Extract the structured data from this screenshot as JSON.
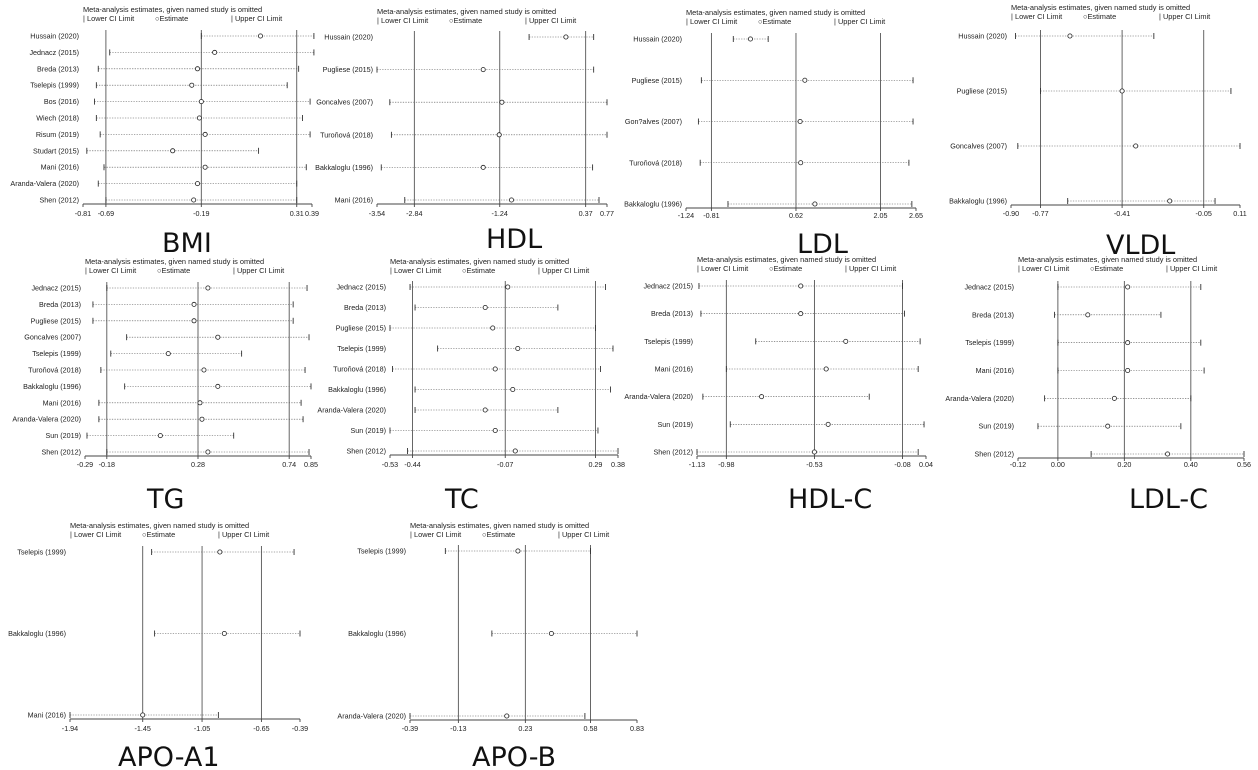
{
  "header": {
    "caption": "Meta-analysis estimates, given named study is omitted",
    "legend_lower": "Lower CI Limit",
    "legend_estimate": "Estimate",
    "legend_upper": "Upper CI Limit"
  },
  "chart_data": [
    {
      "type": "forest",
      "title": "BMI",
      "xlim": [
        -0.81,
        0.39
      ],
      "ticks": [
        "-0.81",
        "-0.69",
        "-0.19",
        "0.31",
        "0.39"
      ],
      "tick_values": [
        -0.81,
        -0.69,
        -0.19,
        0.31,
        0.39
      ],
      "reference_lines": [
        -0.69,
        -0.19,
        0.31
      ],
      "studies": [
        {
          "name": "Hussain (2020)",
          "lower": -0.19,
          "estimate": 0.12,
          "upper": 0.4
        },
        {
          "name": "Jednacz (2015)",
          "lower": -0.67,
          "estimate": -0.12,
          "upper": 0.4
        },
        {
          "name": "Breda (2013)",
          "lower": -0.73,
          "estimate": -0.21,
          "upper": 0.32
        },
        {
          "name": "Tselepis (1999)",
          "lower": -0.74,
          "estimate": -0.24,
          "upper": 0.26
        },
        {
          "name": "Bos (2016)",
          "lower": -0.75,
          "estimate": -0.19,
          "upper": 0.38
        },
        {
          "name": "Wiech (2018)",
          "lower": -0.74,
          "estimate": -0.2,
          "upper": 0.34
        },
        {
          "name": "Risum (2019)",
          "lower": -0.72,
          "estimate": -0.17,
          "upper": 0.38
        },
        {
          "name": "Studart (2015)",
          "lower": -0.79,
          "estimate": -0.34,
          "upper": 0.11
        },
        {
          "name": "Mani (2016)",
          "lower": -0.7,
          "estimate": -0.17,
          "upper": 0.36
        },
        {
          "name": "Aranda-Valera (2020)",
          "lower": -0.73,
          "estimate": -0.21,
          "upper": 0.31
        },
        {
          "name": "Shen (2012)",
          "lower": -0.69,
          "estimate": -0.23,
          "upper": 0.31
        }
      ]
    },
    {
      "type": "forest",
      "title": "HDL",
      "xlim": [
        -3.54,
        0.77
      ],
      "ticks": [
        "-3.54",
        "-2.84",
        "-1.24",
        "0.37",
        "0.77"
      ],
      "tick_values": [
        -3.54,
        -2.84,
        -1.24,
        0.37,
        0.77
      ],
      "reference_lines": [
        -2.84,
        -1.24,
        0.37
      ],
      "studies": [
        {
          "name": "Hussain (2020)",
          "lower": -0.69,
          "estimate": 0.0,
          "upper": 0.52
        },
        {
          "name": "Pugliese (2015)",
          "lower": -3.54,
          "estimate": -1.55,
          "upper": 0.52
        },
        {
          "name": "Goncalves (2007)",
          "lower": -3.3,
          "estimate": -1.2,
          "upper": 0.77
        },
        {
          "name": "Turoňová (2018)",
          "lower": -3.27,
          "estimate": -1.25,
          "upper": 0.77
        },
        {
          "name": "Bakkaloglu (1996)",
          "lower": -3.46,
          "estimate": -1.55,
          "upper": 0.5
        },
        {
          "name": "Mani (2016)",
          "lower": -3.02,
          "estimate": -1.02,
          "upper": 0.62
        }
      ]
    },
    {
      "type": "forest",
      "title": "LDL",
      "xlim": [
        -1.24,
        2.65
      ],
      "ticks": [
        "-1.24",
        "-0.81",
        "0.62",
        "2.05",
        "2.65"
      ],
      "tick_values": [
        -1.24,
        -0.81,
        0.62,
        2.05,
        2.65
      ],
      "reference_lines": [
        -0.81,
        0.62,
        2.05
      ],
      "studies": [
        {
          "name": "Hussain (2020)",
          "lower": -0.44,
          "estimate": -0.15,
          "upper": 0.15
        },
        {
          "name": "Pugliese (2015)",
          "lower": -0.98,
          "estimate": 0.77,
          "upper": 2.6
        },
        {
          "name": "Gon?alves (2007)",
          "lower": -1.03,
          "estimate": 0.69,
          "upper": 2.6
        },
        {
          "name": "Turoňová (2018)",
          "lower": -1.0,
          "estimate": 0.7,
          "upper": 2.53
        },
        {
          "name": "Bakkaloglu (1996)",
          "lower": -0.53,
          "estimate": 0.94,
          "upper": 2.58
        }
      ]
    },
    {
      "type": "forest",
      "title": "VLDL",
      "xlim": [
        -0.9,
        0.11
      ],
      "ticks": [
        "-0.90",
        "-0.77",
        "-0.41",
        "-0.05",
        "0.11"
      ],
      "tick_values": [
        -0.9,
        -0.77,
        -0.41,
        -0.05,
        0.11
      ],
      "reference_lines": [
        -0.77,
        -0.41,
        -0.05
      ],
      "studies": [
        {
          "name": "Hussain (2020)",
          "lower": -0.88,
          "estimate": -0.64,
          "upper": -0.27
        },
        {
          "name": "Pugliese (2015)",
          "lower": -0.77,
          "estimate": -0.41,
          "upper": 0.07
        },
        {
          "name": "Goncalves (2007)",
          "lower": -0.87,
          "estimate": -0.35,
          "upper": 0.11
        },
        {
          "name": "Bakkaloglu (1996)",
          "lower": -0.65,
          "estimate": -0.2,
          "upper": 0.0
        }
      ]
    },
    {
      "type": "forest",
      "title": "TG",
      "xlim": [
        -0.29,
        0.85
      ],
      "ticks": [
        "-0.29",
        "-0.18",
        "0.28",
        "0.74",
        "0.85"
      ],
      "tick_values": [
        -0.29,
        -0.18,
        0.28,
        0.74,
        0.85
      ],
      "reference_lines": [
        -0.18,
        0.28,
        0.74
      ],
      "studies": [
        {
          "name": "Jednacz (2015)",
          "lower": -0.18,
          "estimate": 0.33,
          "upper": 0.83
        },
        {
          "name": "Breda (2013)",
          "lower": -0.25,
          "estimate": 0.26,
          "upper": 0.76
        },
        {
          "name": "Pugliese (2015)",
          "lower": -0.25,
          "estimate": 0.26,
          "upper": 0.76
        },
        {
          "name": "Goncalves (2007)",
          "lower": -0.08,
          "estimate": 0.38,
          "upper": 0.84
        },
        {
          "name": "Tselepis (1999)",
          "lower": -0.16,
          "estimate": 0.13,
          "upper": 0.5
        },
        {
          "name": "Turoňová (2018)",
          "lower": -0.21,
          "estimate": 0.31,
          "upper": 0.82
        },
        {
          "name": "Bakkaloglu (1996)",
          "lower": -0.09,
          "estimate": 0.38,
          "upper": 0.85
        },
        {
          "name": "Mani (2016)",
          "lower": -0.22,
          "estimate": 0.29,
          "upper": 0.8
        },
        {
          "name": "Aranda-Valera (2020)",
          "lower": -0.22,
          "estimate": 0.3,
          "upper": 0.81
        },
        {
          "name": "Sun (2019)",
          "lower": -0.28,
          "estimate": 0.09,
          "upper": 0.46
        },
        {
          "name": "Shen (2012)",
          "lower": -0.18,
          "estimate": 0.33,
          "upper": 0.84
        }
      ]
    },
    {
      "type": "forest",
      "title": "TC",
      "xlim": [
        -0.53,
        0.38
      ],
      "ticks": [
        "-0.53",
        "-0.44",
        "-0.07",
        "0.29",
        "0.38"
      ],
      "tick_values": [
        -0.53,
        -0.44,
        -0.07,
        0.29,
        0.38
      ],
      "reference_lines": [
        -0.44,
        -0.07,
        0.29
      ],
      "studies": [
        {
          "name": "Jednacz (2015)",
          "lower": -0.45,
          "estimate": -0.06,
          "upper": 0.33
        },
        {
          "name": "Breda (2013)",
          "lower": -0.43,
          "estimate": -0.15,
          "upper": 0.14
        },
        {
          "name": "Pugliese (2015)",
          "lower": -0.53,
          "estimate": -0.12,
          "upper": 0.29
        },
        {
          "name": "Tselepis (1999)",
          "lower": -0.34,
          "estimate": -0.02,
          "upper": 0.36
        },
        {
          "name": "Turoňová (2018)",
          "lower": -0.52,
          "estimate": -0.11,
          "upper": 0.31
        },
        {
          "name": "Bakkaloglu (1996)",
          "lower": -0.43,
          "estimate": -0.04,
          "upper": 0.35
        },
        {
          "name": "Aranda-Valera (2020)",
          "lower": -0.43,
          "estimate": -0.15,
          "upper": 0.14
        },
        {
          "name": "Sun (2019)",
          "lower": -0.53,
          "estimate": -0.11,
          "upper": 0.3
        },
        {
          "name": "Shen (2012)",
          "lower": -0.46,
          "estimate": -0.03,
          "upper": 0.38
        }
      ]
    },
    {
      "type": "forest",
      "title": "HDL-C",
      "xlim": [
        -1.13,
        0.04
      ],
      "ticks": [
        "-1.13",
        "-0.98",
        "-0.53",
        "-0.08",
        "0.04"
      ],
      "tick_values": [
        -1.13,
        -0.98,
        -0.53,
        -0.08,
        0.04
      ],
      "reference_lines": [
        -0.98,
        -0.53,
        -0.08
      ],
      "studies": [
        {
          "name": "Jednacz (2015)",
          "lower": -1.12,
          "estimate": -0.6,
          "upper": -0.08
        },
        {
          "name": "Breda (2013)",
          "lower": -1.11,
          "estimate": -0.6,
          "upper": -0.07
        },
        {
          "name": "Tselepis (1999)",
          "lower": -0.83,
          "estimate": -0.37,
          "upper": 0.01
        },
        {
          "name": "Mani (2016)",
          "lower": -0.98,
          "estimate": -0.47,
          "upper": 0.0
        },
        {
          "name": "Aranda-Valera (2020)",
          "lower": -1.1,
          "estimate": -0.8,
          "upper": -0.25
        },
        {
          "name": "Sun (2019)",
          "lower": -0.96,
          "estimate": -0.46,
          "upper": 0.03
        },
        {
          "name": "Shen (2012)",
          "lower": -1.13,
          "estimate": -0.53,
          "upper": 0.0
        }
      ]
    },
    {
      "type": "forest",
      "title": "LDL-C",
      "xlim": [
        -0.12,
        0.56
      ],
      "ticks": [
        "-0.12",
        "0.00",
        "0.20",
        "0.40",
        "0.56"
      ],
      "tick_values": [
        -0.12,
        0.0,
        0.2,
        0.4,
        0.56
      ],
      "reference_lines": [
        0.0,
        0.2,
        0.4
      ],
      "studies": [
        {
          "name": "Jednacz (2015)",
          "lower": 0.0,
          "estimate": 0.21,
          "upper": 0.43
        },
        {
          "name": "Breda (2013)",
          "lower": -0.01,
          "estimate": 0.09,
          "upper": 0.31
        },
        {
          "name": "Tselepis (1999)",
          "lower": 0.0,
          "estimate": 0.21,
          "upper": 0.43
        },
        {
          "name": "Mani (2016)",
          "lower": 0.0,
          "estimate": 0.21,
          "upper": 0.44
        },
        {
          "name": "Aranda-Valera (2020)",
          "lower": -0.04,
          "estimate": 0.17,
          "upper": 0.4
        },
        {
          "name": "Sun (2019)",
          "lower": -0.06,
          "estimate": 0.15,
          "upper": 0.37
        },
        {
          "name": "Shen (2012)",
          "lower": 0.1,
          "estimate": 0.33,
          "upper": 0.56
        }
      ]
    },
    {
      "type": "forest",
      "title": "APO-A1",
      "xlim": [
        -1.94,
        -0.39
      ],
      "ticks": [
        "-1.94",
        "-1.45",
        "-1.05",
        "-0.65",
        "-0.39"
      ],
      "tick_values": [
        -1.94,
        -1.45,
        -1.05,
        -0.65,
        -0.39
      ],
      "reference_lines": [
        -1.45,
        -1.05,
        -0.65
      ],
      "studies": [
        {
          "name": "Tselepis (1999)",
          "lower": -1.39,
          "estimate": -0.93,
          "upper": -0.43
        },
        {
          "name": "Bakkaloglu (1996)",
          "lower": -1.37,
          "estimate": -0.9,
          "upper": -0.39
        },
        {
          "name": "Mani (2016)",
          "lower": -1.94,
          "estimate": -1.45,
          "upper": -0.94
        }
      ]
    },
    {
      "type": "forest",
      "title": "APO-B",
      "xlim": [
        -0.39,
        0.83
      ],
      "ticks": [
        "-0.39",
        "-0.13",
        "0.23",
        "0.58",
        "0.83"
      ],
      "tick_values": [
        -0.39,
        -0.13,
        0.23,
        0.58,
        0.83
      ],
      "reference_lines": [
        -0.13,
        0.23,
        0.58
      ],
      "studies": [
        {
          "name": "Tselepis (1999)",
          "lower": -0.2,
          "estimate": 0.19,
          "upper": 0.58
        },
        {
          "name": "Bakkaloglu (1996)",
          "lower": 0.05,
          "estimate": 0.37,
          "upper": 0.83
        },
        {
          "name": "Aranda-Valera (2020)",
          "lower": -0.39,
          "estimate": 0.13,
          "upper": 0.55
        }
      ]
    }
  ]
}
